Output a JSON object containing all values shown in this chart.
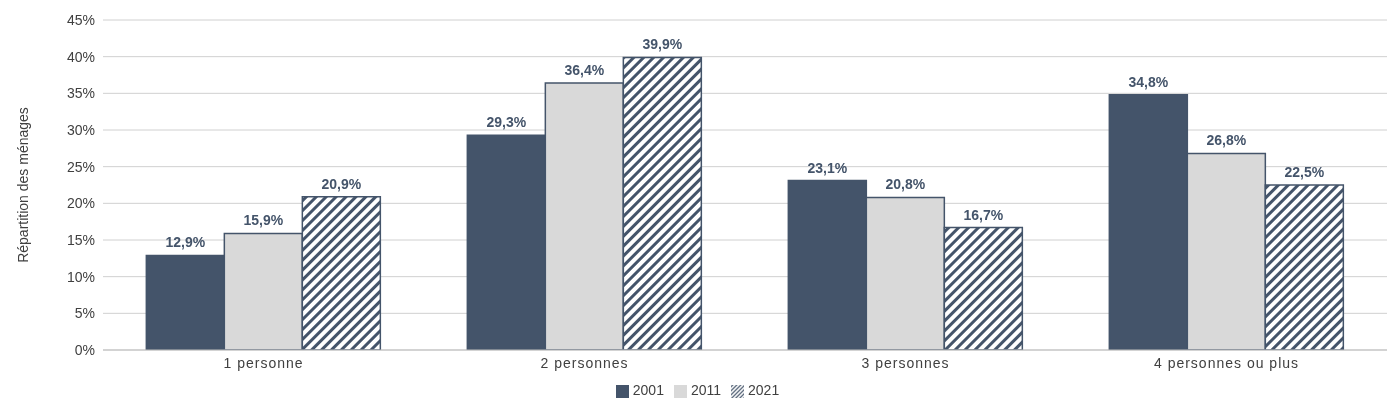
{
  "chart_data": {
    "type": "bar",
    "ylabel": "Répartition des ménages",
    "categories": [
      "1 personne",
      "2 personnes",
      "3 personnes",
      "4 personnes ou plus"
    ],
    "series": [
      {
        "name": "2001",
        "color": "#44546a",
        "values": [
          12.9,
          29.3,
          23.1,
          34.8
        ],
        "value_labels": [
          "12,9%",
          "29,3%",
          "23,1%",
          "34,8%"
        ]
      },
      {
        "name": "2011",
        "color": "#d9d9d9",
        "values": [
          15.9,
          36.4,
          20.8,
          26.8
        ],
        "value_labels": [
          "15,9%",
          "36,4%",
          "20,8%",
          "26,8%"
        ]
      },
      {
        "name": "2021",
        "color": "#44546a",
        "values": [
          20.9,
          39.9,
          16.7,
          22.5
        ],
        "value_labels": [
          "20,9%",
          "39,9%",
          "16,7%",
          "22,5%"
        ]
      }
    ],
    "ylim": [
      0,
      45
    ],
    "yticks": [
      {
        "value": 0,
        "label": "0%"
      },
      {
        "value": 5,
        "label": "5%"
      },
      {
        "value": 10,
        "label": "10%"
      },
      {
        "value": 15,
        "label": "15%"
      },
      {
        "value": 20,
        "label": "20%"
      },
      {
        "value": 25,
        "label": "25%"
      },
      {
        "value": 30,
        "label": "30%"
      },
      {
        "value": 35,
        "label": "35%"
      },
      {
        "value": 40,
        "label": "40%"
      },
      {
        "value": 45,
        "label": "45%"
      }
    ],
    "grid": "y",
    "legend": "bottom"
  }
}
